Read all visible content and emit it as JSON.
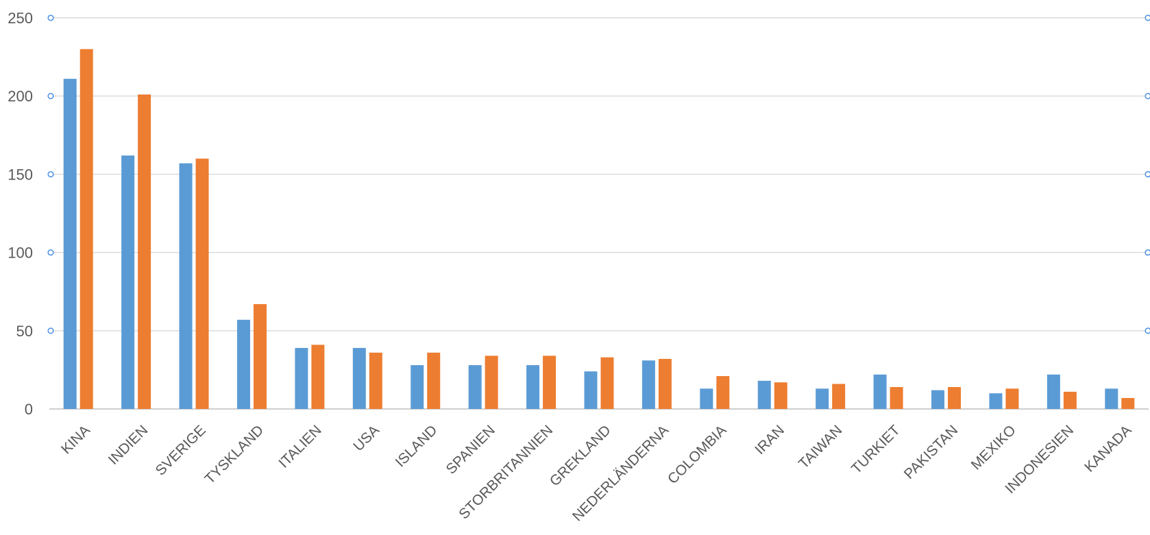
{
  "chart_data": {
    "type": "bar",
    "title": "",
    "xlabel": "",
    "ylabel": "",
    "ylim": [
      0,
      250
    ],
    "yticks": [
      0,
      50,
      100,
      150,
      200,
      250
    ],
    "grid": true,
    "categories": [
      "KINA",
      "INDIEN",
      "SVERIGE",
      "TYSKLAND",
      "ITALIEN",
      "USA",
      "ISLAND",
      "SPANIEN",
      "STORBRITANNIEN",
      "GREKLAND",
      "NEDERLÄNDERNA",
      "COLOMBIA",
      "IRAN",
      "TAIWAN",
      "TURKIET",
      "PAKISTAN",
      "MEXIKO",
      "INDONESIEN",
      "KANADA"
    ],
    "series": [
      {
        "color": "#5b9bd5",
        "values": [
          211,
          162,
          157,
          57,
          39,
          39,
          28,
          28,
          28,
          24,
          31,
          13,
          18,
          13,
          22,
          12,
          10,
          22,
          13
        ]
      },
      {
        "color": "#ed7d31",
        "values": [
          230,
          201,
          160,
          67,
          41,
          36,
          36,
          34,
          34,
          33,
          32,
          21,
          17,
          16,
          14,
          14,
          13,
          11,
          7
        ]
      }
    ],
    "colors": {
      "gridline": "#d9d9d9",
      "axis": "#bfbfbf",
      "text": "#595959",
      "selection_handle": "#4a90e2"
    }
  }
}
